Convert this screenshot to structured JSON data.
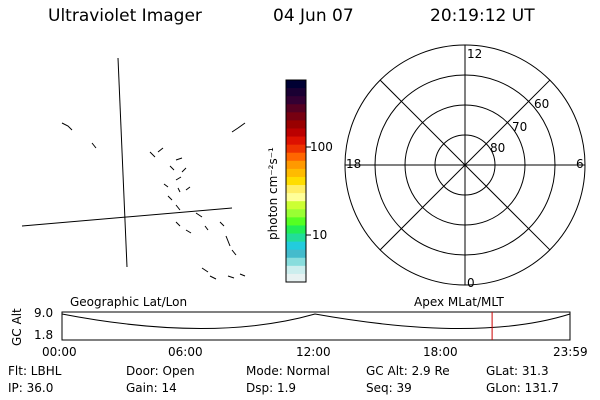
{
  "header": {
    "instrument": "Ultraviolet Imager",
    "date": "04 Jun 07",
    "time": "20:19:12 UT"
  },
  "colorbar": {
    "unit_label": "photon cm⁻²s⁻¹",
    "tick_100": "100",
    "tick_10": "10",
    "colors": [
      "#000033",
      "#1a0033",
      "#330033",
      "#550022",
      "#770011",
      "#990000",
      "#bb0000",
      "#dd1100",
      "#ee3300",
      "#ff6600",
      "#ff9900",
      "#ffbb00",
      "#ffdd00",
      "#ffee66",
      "#ffff99",
      "#ccff33",
      "#99ff33",
      "#55ff22",
      "#22ee55",
      "#22dd99",
      "#22ccdd",
      "#44bbcc",
      "#88dddd",
      "#cceeee",
      "#e8f2f2"
    ]
  },
  "polar_plot": {
    "mlt_labels": {
      "top": "12",
      "left": "18",
      "right": "6",
      "bottom": "0"
    },
    "lat_labels": [
      "60",
      "70",
      "80"
    ]
  },
  "timeline": {
    "left_title": "Geographic Lat/Lon",
    "right_title": "Apex MLat/MLT",
    "ylabel": "GC Alt",
    "ymax": "9.0",
    "ymin": "1.8",
    "ticks": [
      "00:00",
      "06:00",
      "12:00",
      "18:00",
      "23:59"
    ],
    "current_hour": 20.32,
    "marker_color": "#cc0000"
  },
  "status": {
    "flt": "Flt: LBHL",
    "ip": "IP: 36.0",
    "door": "Door: Open",
    "gain": "Gain: 14",
    "mode": "Mode: Normal",
    "dsp": "Dsp:    1.9",
    "gcalt": "GC Alt: 2.9 Re",
    "seq": "Seq: 39",
    "glat": "GLat:  31.3",
    "glon": "GLon: 131.7"
  }
}
